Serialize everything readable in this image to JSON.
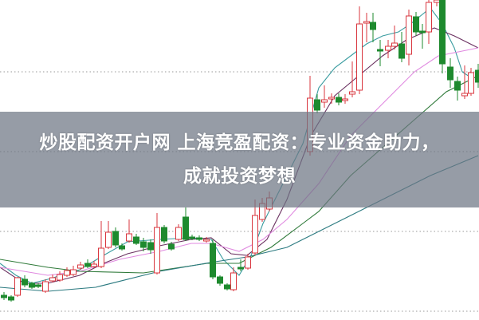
{
  "title": {
    "line1": "炒股配资开户网 上海竞盈配资：专业资金助力，",
    "line2": "成就投资梦想"
  },
  "colors": {
    "up_candle": "#d9363e",
    "down_candle": "#1e8a2e",
    "banner": "#6e7684",
    "ma_lines": [
      "#3a9ca0",
      "#6a3060",
      "#e08ae0",
      "#2f7a3a",
      "#2b7a80"
    ]
  }
}
